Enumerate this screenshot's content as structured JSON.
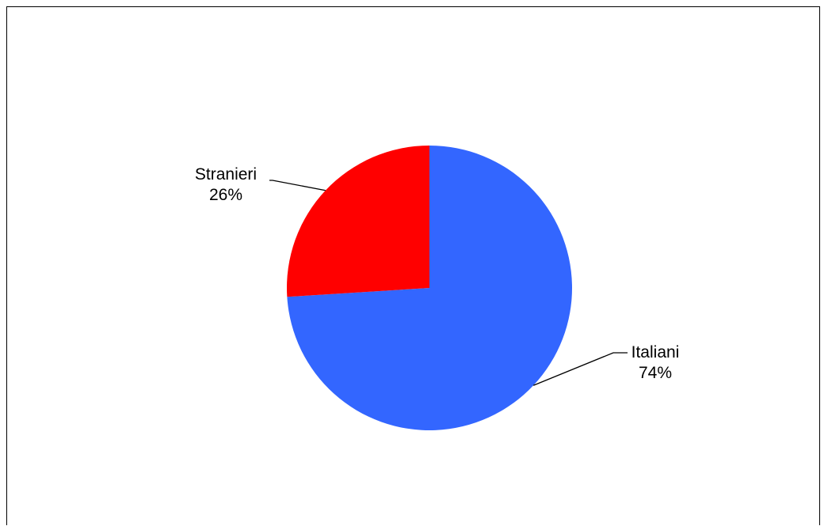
{
  "chart_data": {
    "type": "pie",
    "title": "",
    "categories": [
      "Italiani",
      "Stranieri"
    ],
    "values": [
      74,
      26
    ],
    "value_labels": [
      "74%",
      "26%"
    ],
    "colors": [
      "#3366FF",
      "#FF0000"
    ],
    "start_angle_deg": 0,
    "direction": "clockwise",
    "legend": "none",
    "label_style": "outside with leader lines"
  }
}
